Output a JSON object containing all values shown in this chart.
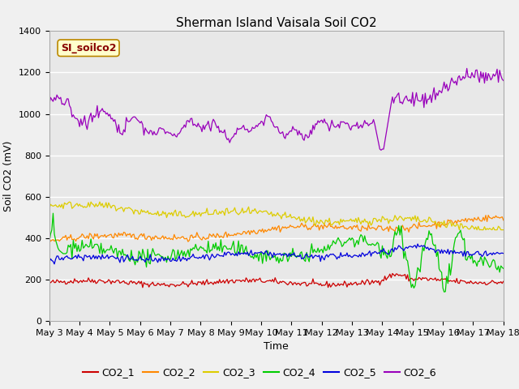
{
  "title": "Sherman Island Vaisala Soil CO2",
  "ylabel": "Soil CO2 (mV)",
  "xlabel": "Time",
  "annotation": "SI_soilco2",
  "ylim": [
    0,
    1400
  ],
  "xlim": [
    0,
    360
  ],
  "xtick_labels": [
    "May 3",
    "May 4",
    "May 5",
    "May 6",
    "May 7",
    "May 8",
    "May 9",
    "May 10",
    "May 11",
    "May 12",
    "May 13",
    "May 14",
    "May 15",
    "May 16",
    "May 17",
    "May 18"
  ],
  "ytick_labels": [
    0,
    200,
    400,
    600,
    800,
    1000,
    1200,
    1400
  ],
  "legend_labels": [
    "CO2_1",
    "CO2_2",
    "CO2_3",
    "CO2_4",
    "CO2_5",
    "CO2_6"
  ],
  "line_colors": [
    "#cc0000",
    "#ff8800",
    "#ddcc00",
    "#00cc00",
    "#0000dd",
    "#9900bb"
  ],
  "background_color": "#f0f0f0",
  "plot_bg_color": "#e8e8e8",
  "annotation_bg": "#ffffcc",
  "annotation_border": "#bb8800",
  "annotation_text_color": "#880000",
  "title_fontsize": 11,
  "axis_fontsize": 9,
  "tick_fontsize": 8,
  "legend_fontsize": 9,
  "n_points": 361
}
